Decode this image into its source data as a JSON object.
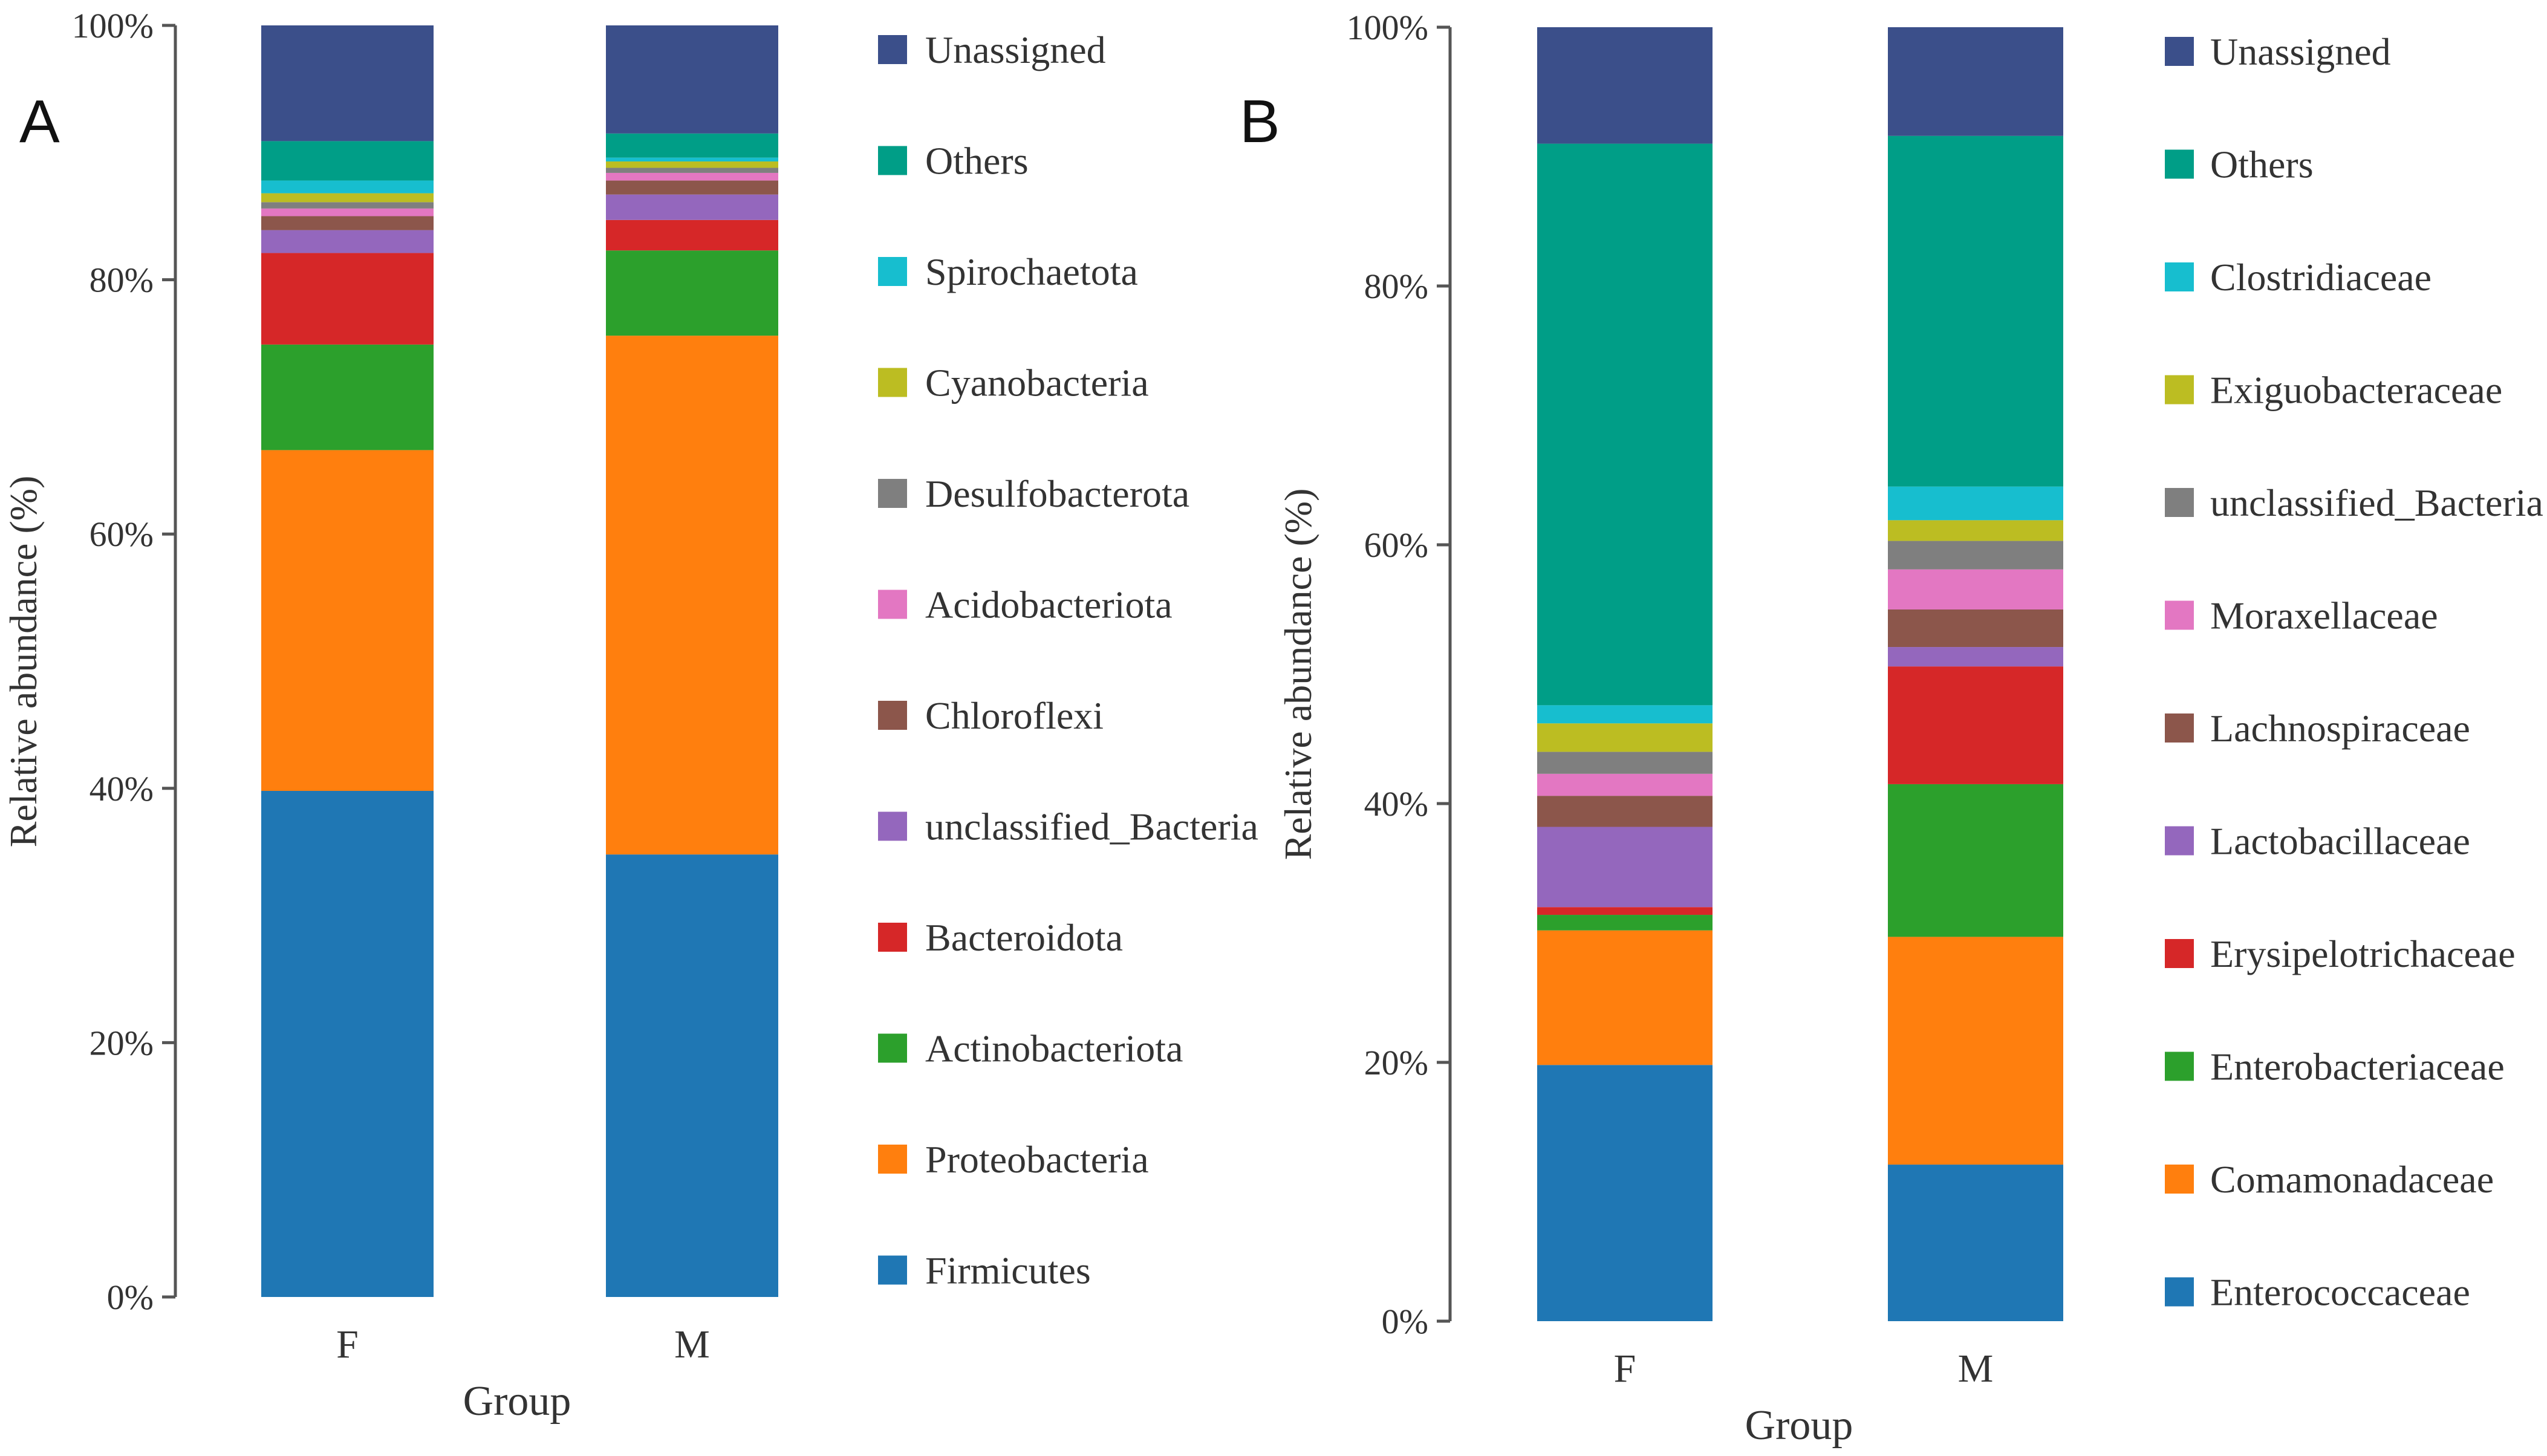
{
  "colors": {
    "Unassigned": "#3b4f8a",
    "Others": "#009e87",
    "Cyan": "#17becf",
    "Olive": "#bcbd22",
    "Gray": "#7f7f7f",
    "Pink": "#e377c2",
    "Brown": "#8c564b",
    "Purple": "#9467bd",
    "Red": "#d62728",
    "Green": "#2ca02c",
    "Orange": "#ff7f0e",
    "Blue": "#1f77b4"
  },
  "chart_data": [
    {
      "type": "bar",
      "stacked": true,
      "panel_label": "A",
      "title": "",
      "xlabel": "Group",
      "ylabel": "Relative abundance (%)",
      "ylim": [
        0,
        100
      ],
      "yticks": [
        "0%",
        "20%",
        "40%",
        "60%",
        "80%",
        "100%"
      ],
      "categories": [
        "F",
        "M"
      ],
      "legend_position": "right",
      "series": [
        {
          "name": "Firmicutes",
          "color": "#1f77b4",
          "values": [
            39.8,
            34.8
          ]
        },
        {
          "name": "Proteobacteria",
          "color": "#ff7f0e",
          "values": [
            26.8,
            40.8
          ]
        },
        {
          "name": "Actinobacteriota",
          "color": "#2ca02c",
          "values": [
            8.3,
            6.7
          ]
        },
        {
          "name": "Bacteroidota",
          "color": "#d62728",
          "values": [
            7.2,
            2.4
          ]
        },
        {
          "name": "unclassified_Bacteria",
          "color": "#9467bd",
          "values": [
            1.8,
            2.0
          ]
        },
        {
          "name": "Chloroflexi",
          "color": "#8c564b",
          "values": [
            1.1,
            1.1
          ]
        },
        {
          "name": "Acidobacteriota",
          "color": "#e377c2",
          "values": [
            0.6,
            0.6
          ]
        },
        {
          "name": "Desulfobacterota",
          "color": "#7f7f7f",
          "values": [
            0.5,
            0.4
          ]
        },
        {
          "name": "Cyanobacteria",
          "color": "#bcbd22",
          "values": [
            0.7,
            0.5
          ]
        },
        {
          "name": "Spirochaetota",
          "color": "#17becf",
          "values": [
            1.0,
            0.3
          ]
        },
        {
          "name": "Others",
          "color": "#009e87",
          "values": [
            3.1,
            1.9
          ]
        },
        {
          "name": "Unassigned",
          "color": "#3b4f8a",
          "values": [
            9.1,
            8.5
          ]
        }
      ]
    },
    {
      "type": "bar",
      "stacked": true,
      "panel_label": "B",
      "title": "",
      "xlabel": "Group",
      "ylabel": "Relative abundance (%)",
      "ylim": [
        0,
        100
      ],
      "yticks": [
        "0%",
        "20%",
        "40%",
        "60%",
        "80%",
        "100%"
      ],
      "categories": [
        "F",
        "M"
      ],
      "legend_position": "right",
      "series": [
        {
          "name": "Enterococcaceae",
          "color": "#1f77b4",
          "values": [
            19.8,
            12.1
          ]
        },
        {
          "name": "Comamonadaceae",
          "color": "#ff7f0e",
          "values": [
            10.4,
            17.6
          ]
        },
        {
          "name": "Enterobacteriaceae",
          "color": "#2ca02c",
          "values": [
            1.2,
            11.8
          ]
        },
        {
          "name": "Erysipelotrichaceae",
          "color": "#d62728",
          "values": [
            0.6,
            9.1
          ]
        },
        {
          "name": "Lactobacillaceae",
          "color": "#9467bd",
          "values": [
            6.2,
            1.5
          ]
        },
        {
          "name": "Lachnospiraceae",
          "color": "#8c564b",
          "values": [
            2.4,
            2.9
          ]
        },
        {
          "name": "Moraxellaceae",
          "color": "#e377c2",
          "values": [
            1.7,
            3.1
          ]
        },
        {
          "name": "unclassified_Bacteria",
          "color": "#7f7f7f",
          "values": [
            1.7,
            2.2
          ]
        },
        {
          "name": "Exiguobacteraceae",
          "color": "#bcbd22",
          "values": [
            2.2,
            1.6
          ]
        },
        {
          "name": "Clostridiaceae",
          "color": "#17becf",
          "values": [
            1.4,
            2.6
          ]
        },
        {
          "name": "Others",
          "color": "#009e87",
          "values": [
            43.4,
            27.1
          ]
        },
        {
          "name": "Unassigned",
          "color": "#3b4f8a",
          "values": [
            9.0,
            8.4
          ]
        }
      ]
    }
  ]
}
